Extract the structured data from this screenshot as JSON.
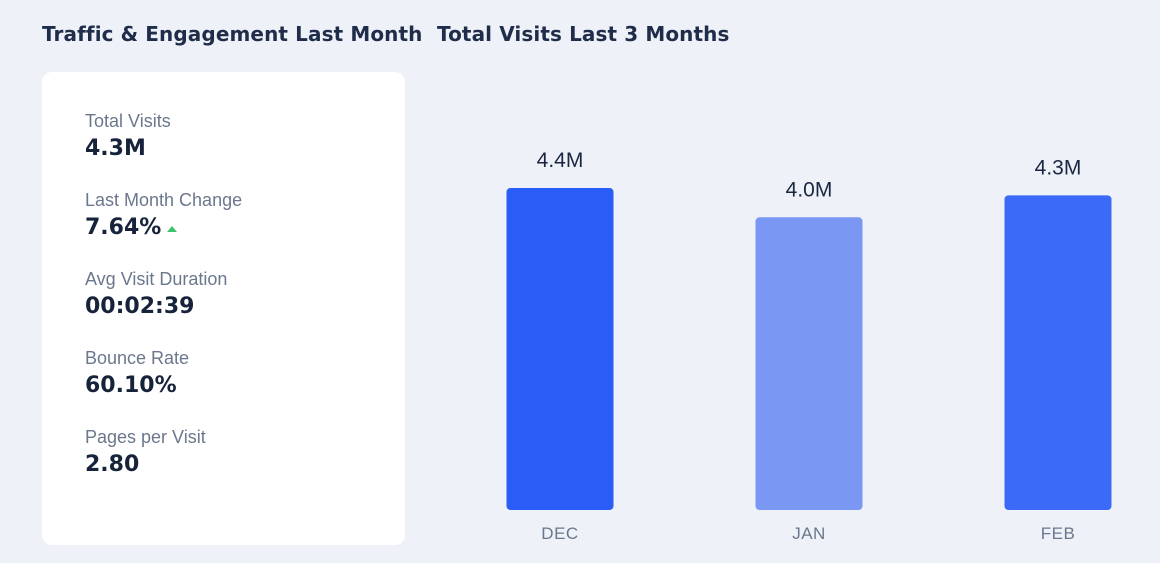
{
  "left_panel": {
    "title": "Traffic & Engagement Last Month",
    "stats": [
      {
        "label": "Total Visits",
        "value": "4.3M",
        "trend": ""
      },
      {
        "label": "Last Month Change",
        "value": "7.64%",
        "trend": "up"
      },
      {
        "label": "Avg Visit Duration",
        "value": "00:02:39",
        "trend": ""
      },
      {
        "label": "Bounce Rate",
        "value": "60.10%",
        "trend": ""
      },
      {
        "label": "Pages per Visit",
        "value": "2.80",
        "trend": ""
      }
    ]
  },
  "right_panel": {
    "title": "Total Visits Last 3 Months"
  },
  "colors": {
    "dec_bar": "#2a5cf6",
    "jan_bar": "#7b97f4",
    "feb_bar": "#3a6af7",
    "trend_up": "#3cc46b"
  },
  "chart_data": {
    "type": "bar",
    "categories": [
      "DEC",
      "JAN",
      "FEB"
    ],
    "values": [
      4.4,
      4.0,
      4.3
    ],
    "value_labels": [
      "4.4M",
      "4.0M",
      "4.3M"
    ],
    "unit": "M",
    "title": "Total Visits Last 3 Months",
    "xlabel": "",
    "ylabel": "",
    "ylim": [
      0,
      4.4
    ],
    "grid": false,
    "legend": "none"
  }
}
